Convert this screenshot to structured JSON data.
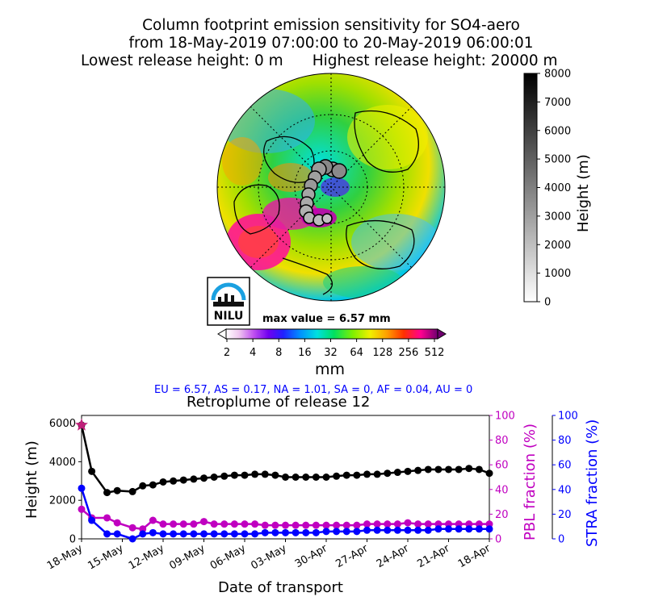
{
  "title": {
    "line1": "Column footprint emission sensitivity for SO4-aero",
    "line2": "from 18-May-2019 07:00:00 to 20-May-2019 06:00:01",
    "lowest": "Lowest release height: 0 m",
    "highest": "Highest release height: 20000 m"
  },
  "logo_text": "NILU",
  "max_value_text": "max value = 6.57 mm",
  "colorbar_mm": {
    "ticks": [
      "2",
      "4",
      "8",
      "16",
      "32",
      "64",
      "128",
      "256",
      "512"
    ],
    "unit_label": "mm"
  },
  "colorbar_height": {
    "label": "Height (m)",
    "ticks": [
      "0",
      "1000",
      "2000",
      "3000",
      "4000",
      "5000",
      "6000",
      "7000",
      "8000"
    ],
    "range": [
      0,
      8000
    ]
  },
  "region_summary": "EU = 6.57,  AS = 0.17,  NA = 1.01,  SA = 0,  AF = 0.04,  AU = 0",
  "chart_data": {
    "type": "line",
    "title": "Retroplume of release 12",
    "xlabel": "Date of transport",
    "categories": [
      "18-May",
      "15-May",
      "12-May",
      "09-May",
      "06-May",
      "03-May",
      "30-Apr",
      "27-Apr",
      "24-Apr",
      "21-Apr",
      "18-Apr"
    ],
    "x_days_back": [
      0,
      0.5,
      1,
      1.5,
      2,
      2.5,
      3,
      3.5,
      4,
      4.5,
      5,
      5.5,
      6,
      6.5,
      7,
      7.5,
      8,
      8.5,
      9,
      9.5,
      10,
      10.5,
      11,
      11.5,
      12,
      12.5,
      13,
      13.5,
      14,
      14.5,
      15,
      15.5,
      16,
      16.5,
      17,
      17.5,
      18,
      18.5,
      19,
      19.5,
      20,
      20.5,
      21,
      21.5,
      22,
      22.5,
      23,
      23.5,
      24,
      24.5,
      25,
      25.5,
      26,
      26.5,
      27,
      27.5,
      28,
      28.5,
      29,
      29.5,
      30,
      30.5,
      31,
      31.5,
      32,
      32.5,
      33,
      33.5,
      34,
      34.5,
      35,
      35.5,
      36,
      36.5,
      37,
      37.5,
      38,
      38.5,
      39,
      39.5,
      40
    ],
    "axes": {
      "left": {
        "label": "Height (m)",
        "ticks": [
          "0",
          "2000",
          "4000",
          "6000"
        ],
        "range": [
          0,
          6400
        ]
      },
      "right_pbl": {
        "label": "PBL fraction (%)",
        "ticks": [
          "0",
          "20",
          "40",
          "60",
          "80",
          "100"
        ],
        "range": [
          0,
          100
        ],
        "color": "#c000c0"
      },
      "right_stra": {
        "label": "STRA fraction (%)",
        "ticks": [
          "0",
          "20",
          "40",
          "60",
          "80",
          "100"
        ],
        "range": [
          0,
          100
        ],
        "color": "#0000ff"
      }
    },
    "series": [
      {
        "name": "Height (m)",
        "color": "#000000",
        "points": [
          [
            0,
            5900
          ],
          [
            1,
            3500
          ],
          [
            2.5,
            2400
          ],
          [
            3.5,
            2500
          ],
          [
            5,
            2450
          ],
          [
            6,
            2750
          ],
          [
            7,
            2800
          ],
          [
            8,
            2950
          ],
          [
            9,
            3000
          ],
          [
            10,
            3050
          ],
          [
            11,
            3100
          ],
          [
            12,
            3150
          ],
          [
            13,
            3200
          ],
          [
            14,
            3250
          ],
          [
            15,
            3300
          ],
          [
            16,
            3300
          ],
          [
            17,
            3350
          ],
          [
            18,
            3350
          ],
          [
            19,
            3300
          ],
          [
            20,
            3200
          ],
          [
            21,
            3200
          ],
          [
            22,
            3200
          ],
          [
            23,
            3200
          ],
          [
            24,
            3200
          ],
          [
            25,
            3250
          ],
          [
            26,
            3300
          ],
          [
            27,
            3300
          ],
          [
            28,
            3350
          ],
          [
            29,
            3350
          ],
          [
            30,
            3400
          ],
          [
            31,
            3450
          ],
          [
            32,
            3500
          ],
          [
            33,
            3550
          ],
          [
            34,
            3600
          ],
          [
            35,
            3600
          ],
          [
            36,
            3600
          ],
          [
            37,
            3600
          ],
          [
            38,
            3650
          ],
          [
            39,
            3600
          ],
          [
            40,
            3400
          ]
        ]
      },
      {
        "name": "PBL fraction (%)",
        "color": "#c000c0",
        "points": [
          [
            0,
            24
          ],
          [
            1,
            17
          ],
          [
            2.5,
            17
          ],
          [
            3.5,
            13
          ],
          [
            5,
            9
          ],
          [
            6,
            8
          ],
          [
            7,
            15
          ],
          [
            8,
            12
          ],
          [
            9,
            12
          ],
          [
            10,
            12
          ],
          [
            11,
            12
          ],
          [
            12,
            14
          ],
          [
            13,
            12
          ],
          [
            14,
            12
          ],
          [
            15,
            12
          ],
          [
            16,
            12
          ],
          [
            17,
            12
          ],
          [
            18,
            11
          ],
          [
            19,
            11
          ],
          [
            20,
            11
          ],
          [
            21,
            11
          ],
          [
            22,
            11
          ],
          [
            23,
            11
          ],
          [
            24,
            11
          ],
          [
            25,
            11
          ],
          [
            26,
            11
          ],
          [
            27,
            11
          ],
          [
            28,
            12
          ],
          [
            29,
            12
          ],
          [
            30,
            12
          ],
          [
            31,
            12
          ],
          [
            32,
            13
          ],
          [
            33,
            12
          ],
          [
            34,
            12
          ],
          [
            35,
            12
          ],
          [
            36,
            12
          ],
          [
            37,
            12
          ],
          [
            38,
            12
          ],
          [
            39,
            12
          ],
          [
            40,
            12
          ]
        ]
      },
      {
        "name": "STRA fraction (%)",
        "color": "#0000ff",
        "points": [
          [
            0,
            41
          ],
          [
            1,
            15
          ],
          [
            2.5,
            4
          ],
          [
            3.5,
            4
          ],
          [
            5,
            0
          ],
          [
            6,
            4
          ],
          [
            7,
            5
          ],
          [
            8,
            4
          ],
          [
            9,
            4
          ],
          [
            10,
            4
          ],
          [
            11,
            4
          ],
          [
            12,
            4
          ],
          [
            13,
            4
          ],
          [
            14,
            4
          ],
          [
            15,
            4
          ],
          [
            16,
            4
          ],
          [
            17,
            4
          ],
          [
            18,
            5
          ],
          [
            19,
            5
          ],
          [
            20,
            5
          ],
          [
            21,
            5
          ],
          [
            22,
            5
          ],
          [
            23,
            5
          ],
          [
            24,
            6
          ],
          [
            25,
            6
          ],
          [
            26,
            6
          ],
          [
            27,
            6
          ],
          [
            28,
            7
          ],
          [
            29,
            7
          ],
          [
            30,
            7
          ],
          [
            31,
            7
          ],
          [
            32,
            7
          ],
          [
            33,
            7
          ],
          [
            34,
            7
          ],
          [
            35,
            8
          ],
          [
            36,
            8
          ],
          [
            37,
            8
          ],
          [
            38,
            8
          ],
          [
            39,
            8
          ],
          [
            40,
            8
          ]
        ]
      }
    ],
    "star_marker": {
      "x": 0,
      "y": 5900,
      "color": "#c0207a"
    },
    "grid": false
  }
}
